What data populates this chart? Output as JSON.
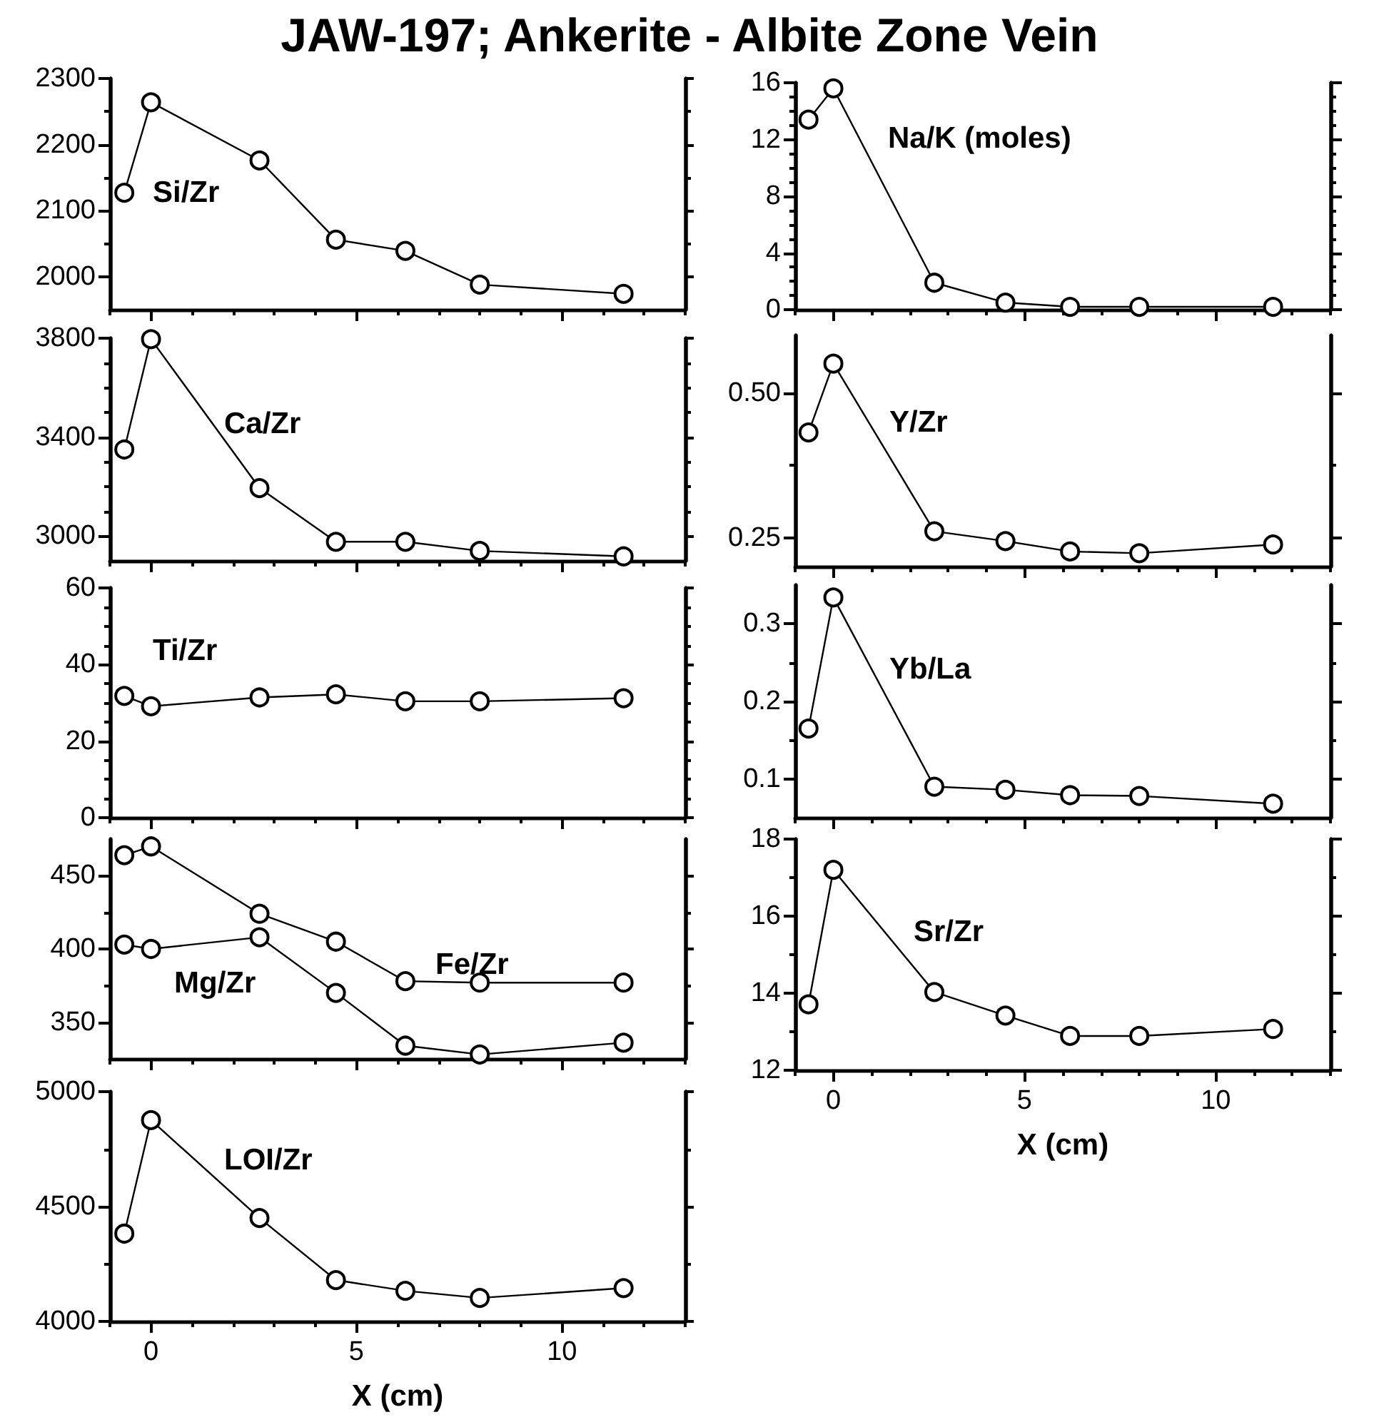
{
  "chart_data": [
    {
      "type": "line",
      "title": "JAW-197; Ankerite - Albite Zone Vein",
      "marker": "circle",
      "tick_labels": "y",
      "x": [
        -0.65,
        0,
        2.64,
        4.5,
        6.19,
        8.0,
        11.5
      ],
      "xlim": [
        -1,
        13
      ],
      "xticks": [
        {
          "value": -1,
          "label": null
        },
        0,
        {
          "value": 1,
          "label": null
        },
        {
          "value": 2,
          "label": null
        },
        {
          "value": 3,
          "label": null
        },
        {
          "value": 4,
          "label": null
        },
        5,
        {
          "value": 6,
          "label": null
        },
        {
          "value": 7,
          "label": null
        },
        {
          "value": 8,
          "label": null
        },
        {
          "value": 9,
          "label": null
        },
        10,
        {
          "value": 11,
          "label": null
        },
        {
          "value": 12,
          "label": null
        },
        {
          "value": 13,
          "label": null
        }
      ],
      "ylim": [
        1950,
        2300
      ],
      "yticks": [
        2000,
        {
          "value": 2050,
          "label": null
        },
        2100,
        {
          "value": 2150,
          "label": null
        },
        2200,
        {
          "value": 2250,
          "label": null
        },
        2300
      ],
      "series": [
        {
          "name": "Si/Zr",
          "color": "#000000",
          "values": [
            2127,
            2264,
            2176,
            2056,
            2039,
            1988,
            1974
          ]
        }
      ]
    },
    {
      "type": "line",
      "marker": "circle",
      "tick_labels": "y",
      "x": [
        -0.65,
        0,
        2.64,
        4.5,
        6.19,
        8.0,
        11.5
      ],
      "xlim": [
        -1,
        13
      ],
      "xticks": [
        {
          "value": -1,
          "label": null
        },
        0,
        {
          "value": 1,
          "label": null
        },
        {
          "value": 2,
          "label": null
        },
        {
          "value": 3,
          "label": null
        },
        {
          "value": 4,
          "label": null
        },
        5,
        {
          "value": 6,
          "label": null
        },
        {
          "value": 7,
          "label": null
        },
        {
          "value": 8,
          "label": null
        },
        {
          "value": 9,
          "label": null
        },
        10,
        {
          "value": 11,
          "label": null
        },
        {
          "value": 12,
          "label": null
        },
        {
          "value": 13,
          "label": null
        }
      ],
      "ylim": [
        0,
        16
      ],
      "yticks": [
        0,
        {
          "value": 1,
          "label": null
        },
        {
          "value": 2,
          "label": null
        },
        {
          "value": 3,
          "label": null
        },
        4,
        {
          "value": 5,
          "label": null
        },
        {
          "value": 6,
          "label": null
        },
        {
          "value": 7,
          "label": null
        },
        8,
        {
          "value": 9,
          "label": null
        },
        {
          "value": 10,
          "label": null
        },
        {
          "value": 11,
          "label": null
        },
        12,
        {
          "value": 13,
          "label": null
        },
        {
          "value": 14,
          "label": null
        },
        {
          "value": 15,
          "label": null
        },
        16
      ],
      "series": [
        {
          "name": "Na/K (moles)",
          "color": "#000000",
          "values": [
            13.4,
            15.6,
            1.9,
            0.5,
            0.2,
            0.2,
            0.2
          ]
        }
      ]
    },
    {
      "type": "line",
      "marker": "circle",
      "tick_labels": "y",
      "x": [
        -0.65,
        0,
        2.64,
        4.5,
        6.19,
        8.0,
        11.5
      ],
      "xlim": [
        -1,
        13
      ],
      "xticks": [
        {
          "value": -1,
          "label": null
        },
        0,
        {
          "value": 1,
          "label": null
        },
        {
          "value": 2,
          "label": null
        },
        {
          "value": 3,
          "label": null
        },
        {
          "value": 4,
          "label": null
        },
        5,
        {
          "value": 6,
          "label": null
        },
        {
          "value": 7,
          "label": null
        },
        {
          "value": 8,
          "label": null
        },
        {
          "value": 9,
          "label": null
        },
        10,
        {
          "value": 11,
          "label": null
        },
        {
          "value": 12,
          "label": null
        },
        {
          "value": 13,
          "label": null
        }
      ],
      "ylim": [
        2900,
        3800
      ],
      "yticks": [
        3000,
        {
          "value": 3100,
          "label": null
        },
        {
          "value": 3200,
          "label": null
        },
        {
          "value": 3300,
          "label": null
        },
        3400,
        {
          "value": 3500,
          "label": null
        },
        {
          "value": 3600,
          "label": null
        },
        {
          "value": 3700,
          "label": null
        },
        3800
      ],
      "series": [
        {
          "name": "Ca/Zr",
          "color": "#000000",
          "values": [
            3350,
            3796,
            3194,
            2977,
            2977,
            2940,
            2918
          ]
        }
      ]
    },
    {
      "type": "line",
      "marker": "circle",
      "tick_labels": "y",
      "x": [
        -0.65,
        0,
        2.64,
        4.5,
        6.19,
        8.0,
        11.5
      ],
      "xlim": [
        -1,
        13
      ],
      "xticks": [
        {
          "value": -1,
          "label": null
        },
        0,
        {
          "value": 1,
          "label": null
        },
        {
          "value": 2,
          "label": null
        },
        {
          "value": 3,
          "label": null
        },
        {
          "value": 4,
          "label": null
        },
        5,
        {
          "value": 6,
          "label": null
        },
        {
          "value": 7,
          "label": null
        },
        {
          "value": 8,
          "label": null
        },
        {
          "value": 9,
          "label": null
        },
        10,
        {
          "value": 11,
          "label": null
        },
        {
          "value": 12,
          "label": null
        },
        {
          "value": 13,
          "label": null
        }
      ],
      "ylim": [
        0.2,
        0.6
      ],
      "yticks": [
        {
          "value": 0.25,
          "label": "0.25"
        },
        {
          "value": 0.375,
          "label": null
        },
        {
          "value": 0.5,
          "label": "0.50"
        }
      ],
      "series": [
        {
          "name": "Y/Zr",
          "color": "#000000",
          "values": [
            0.432,
            0.551,
            0.261,
            0.244,
            0.226,
            0.223,
            0.238
          ]
        }
      ]
    },
    {
      "type": "line",
      "marker": "circle",
      "tick_labels": "y",
      "x": [
        -0.65,
        0,
        2.64,
        4.5,
        6.19,
        8.0,
        11.5
      ],
      "xlim": [
        -1,
        13
      ],
      "xticks": [
        {
          "value": -1,
          "label": null
        },
        0,
        {
          "value": 1,
          "label": null
        },
        {
          "value": 2,
          "label": null
        },
        {
          "value": 3,
          "label": null
        },
        {
          "value": 4,
          "label": null
        },
        5,
        {
          "value": 6,
          "label": null
        },
        {
          "value": 7,
          "label": null
        },
        {
          "value": 8,
          "label": null
        },
        {
          "value": 9,
          "label": null
        },
        10,
        {
          "value": 11,
          "label": null
        },
        {
          "value": 12,
          "label": null
        },
        {
          "value": 13,
          "label": null
        }
      ],
      "ylim": [
        0,
        60
      ],
      "yticks": [
        0,
        {
          "value": 5,
          "label": null
        },
        {
          "value": 10,
          "label": null
        },
        {
          "value": 15,
          "label": null
        },
        20,
        {
          "value": 25,
          "label": null
        },
        {
          "value": 30,
          "label": null
        },
        {
          "value": 35,
          "label": null
        },
        40,
        {
          "value": 45,
          "label": null
        },
        {
          "value": 50,
          "label": null
        },
        {
          "value": 55,
          "label": null
        },
        60
      ],
      "series": [
        {
          "name": "Ti/Zr",
          "color": "#000000",
          "values": [
            31.8,
            29.1,
            31.4,
            32.2,
            30.4,
            30.4,
            31.2
          ]
        }
      ]
    },
    {
      "type": "line",
      "marker": "circle",
      "tick_labels": "y",
      "x": [
        -0.65,
        0,
        2.64,
        4.5,
        6.19,
        8.0,
        11.5
      ],
      "xlim": [
        -1,
        13
      ],
      "xticks": [
        {
          "value": -1,
          "label": null
        },
        0,
        {
          "value": 1,
          "label": null
        },
        {
          "value": 2,
          "label": null
        },
        {
          "value": 3,
          "label": null
        },
        {
          "value": 4,
          "label": null
        },
        5,
        {
          "value": 6,
          "label": null
        },
        {
          "value": 7,
          "label": null
        },
        {
          "value": 8,
          "label": null
        },
        {
          "value": 9,
          "label": null
        },
        10,
        {
          "value": 11,
          "label": null
        },
        {
          "value": 12,
          "label": null
        },
        {
          "value": 13,
          "label": null
        }
      ],
      "ylim": [
        0.05,
        0.35
      ],
      "yticks": [
        0.1,
        {
          "value": 0.15,
          "label": null
        },
        0.2,
        {
          "value": 0.25,
          "label": null
        },
        0.3
      ],
      "series": [
        {
          "name": "Yb/La",
          "color": "#000000",
          "values": [
            0.165,
            0.334,
            0.09,
            0.086,
            0.079,
            0.078,
            0.068
          ]
        }
      ]
    },
    {
      "type": "line",
      "marker": "circle",
      "tick_labels": "y",
      "x": [
        -0.65,
        0,
        2.64,
        4.5,
        6.19,
        8.0,
        11.5
      ],
      "xlim": [
        -1,
        13
      ],
      "xticks": [
        {
          "value": -1,
          "label": null
        },
        0,
        {
          "value": 1,
          "label": null
        },
        {
          "value": 2,
          "label": null
        },
        {
          "value": 3,
          "label": null
        },
        {
          "value": 4,
          "label": null
        },
        5,
        {
          "value": 6,
          "label": null
        },
        {
          "value": 7,
          "label": null
        },
        {
          "value": 8,
          "label": null
        },
        {
          "value": 9,
          "label": null
        },
        10,
        {
          "value": 11,
          "label": null
        },
        {
          "value": 12,
          "label": null
        },
        {
          "value": 13,
          "label": null
        }
      ],
      "ylim": [
        325,
        475
      ],
      "yticks": [
        350,
        {
          "value": 375,
          "label": null
        },
        400,
        {
          "value": 425,
          "label": null
        },
        450
      ],
      "series": [
        {
          "name": "Fe/Zr",
          "color": "#000000",
          "values": [
            464,
            470,
            424,
            405,
            378,
            377,
            377
          ]
        },
        {
          "name": "Mg/Zr",
          "color": "#000000",
          "values": [
            403,
            400,
            408,
            370,
            334,
            328,
            336
          ]
        }
      ]
    },
    {
      "type": "line",
      "marker": "circle",
      "xlabel": "X (cm)",
      "x": [
        -0.65,
        0,
        2.64,
        4.5,
        6.19,
        8.0,
        11.5
      ],
      "xlim": [
        -1,
        13
      ],
      "xticks": [
        {
          "value": -1,
          "label": null
        },
        0,
        {
          "value": 1,
          "label": null
        },
        {
          "value": 2,
          "label": null
        },
        {
          "value": 3,
          "label": null
        },
        {
          "value": 4,
          "label": null
        },
        5,
        {
          "value": 6,
          "label": null
        },
        {
          "value": 7,
          "label": null
        },
        {
          "value": 8,
          "label": null
        },
        {
          "value": 9,
          "label": null
        },
        10,
        {
          "value": 11,
          "label": null
        },
        {
          "value": 12,
          "label": null
        },
        {
          "value": 13,
          "label": null
        }
      ],
      "ylim": [
        12,
        18
      ],
      "yticks": [
        12,
        {
          "value": 13,
          "label": null
        },
        14,
        {
          "value": 15,
          "label": null
        },
        16,
        {
          "value": 17,
          "label": null
        },
        18
      ],
      "series": [
        {
          "name": "Sr/Zr",
          "color": "#000000",
          "values": [
            13.71,
            17.2,
            14.03,
            13.42,
            12.89,
            12.89,
            13.07
          ]
        }
      ]
    },
    {
      "type": "line",
      "marker": "circle",
      "xlabel": "X (cm)",
      "x": [
        -0.65,
        0,
        2.64,
        4.5,
        6.19,
        8.0,
        11.5
      ],
      "xlim": [
        -1,
        13
      ],
      "xticks": [
        {
          "value": -1,
          "label": null
        },
        0,
        {
          "value": 1,
          "label": null
        },
        {
          "value": 2,
          "label": null
        },
        {
          "value": 3,
          "label": null
        },
        {
          "value": 4,
          "label": null
        },
        5,
        {
          "value": 6,
          "label": null
        },
        {
          "value": 7,
          "label": null
        },
        {
          "value": 8,
          "label": null
        },
        {
          "value": 9,
          "label": null
        },
        10,
        {
          "value": 11,
          "label": null
        },
        {
          "value": 12,
          "label": null
        },
        {
          "value": 13,
          "label": null
        }
      ],
      "ylim": [
        4000,
        5000
      ],
      "yticks": [
        4000,
        {
          "value": 4250,
          "label": null
        },
        4500,
        {
          "value": 4750,
          "label": null
        },
        5000
      ],
      "series": [
        {
          "name": "LOI/Zr",
          "color": "#000000",
          "values": [
            4382,
            4876,
            4450,
            4180,
            4133,
            4102,
            4145
          ]
        }
      ]
    }
  ]
}
